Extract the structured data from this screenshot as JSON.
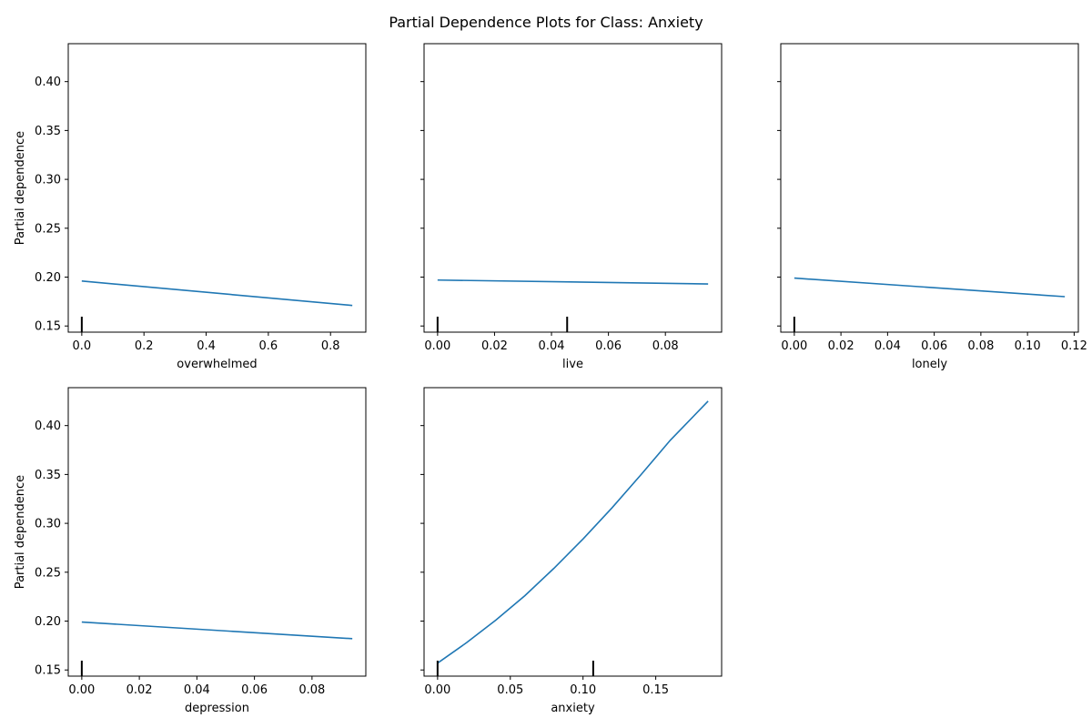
{
  "figure": {
    "title": "Partial Dependence Plots for Class: Anxiety",
    "line_color": "#1f77b4",
    "rug_color": "#000000"
  },
  "chart_data": [
    {
      "type": "line",
      "xlabel": "overwhelmed",
      "ylabel": "Partial dependence",
      "xlim": [
        -0.0435,
        0.9135
      ],
      "ylim": [
        0.1437,
        0.4388
      ],
      "xticks": [
        0.0,
        0.2,
        0.4,
        0.6,
        0.8
      ],
      "xtick_labels": [
        "0.0",
        "0.2",
        "0.4",
        "0.6",
        "0.8"
      ],
      "yticks": [
        0.15,
        0.2,
        0.25,
        0.3,
        0.35,
        0.4
      ],
      "ytick_labels": [
        "0.15",
        "0.20",
        "0.25",
        "0.30",
        "0.35",
        "0.40"
      ],
      "show_yticklabels": true,
      "series": [
        {
          "x": [
            0.0,
            0.87
          ],
          "y": [
            0.196,
            0.171
          ]
        }
      ],
      "deciles": [
        0.0
      ]
    },
    {
      "type": "line",
      "xlabel": "live",
      "ylabel": "",
      "xlim": [
        -0.00475,
        0.09975
      ],
      "ylim": [
        0.1437,
        0.4388
      ],
      "xticks": [
        0.0,
        0.02,
        0.04,
        0.06,
        0.08
      ],
      "xtick_labels": [
        "0.00",
        "0.02",
        "0.04",
        "0.06",
        "0.08"
      ],
      "yticks": [
        0.15,
        0.2,
        0.25,
        0.3,
        0.35,
        0.4
      ],
      "ytick_labels": [
        "",
        "",
        "",
        "",
        "",
        ""
      ],
      "show_yticklabels": false,
      "series": [
        {
          "x": [
            0.0,
            0.095
          ],
          "y": [
            0.197,
            0.193
          ]
        }
      ],
      "deciles": [
        0.0,
        0.0455
      ]
    },
    {
      "type": "line",
      "xlabel": "lonely",
      "ylabel": "",
      "xlim": [
        -0.0058,
        0.1218
      ],
      "ylim": [
        0.1437,
        0.4388
      ],
      "xticks": [
        0.0,
        0.02,
        0.04,
        0.06,
        0.08,
        0.1,
        0.12
      ],
      "xtick_labels": [
        "0.00",
        "0.02",
        "0.04",
        "0.06",
        "0.08",
        "0.10",
        "0.12"
      ],
      "yticks": [
        0.15,
        0.2,
        0.25,
        0.3,
        0.35,
        0.4
      ],
      "ytick_labels": [
        "",
        "",
        "",
        "",
        "",
        ""
      ],
      "show_yticklabels": false,
      "series": [
        {
          "x": [
            0.0,
            0.116
          ],
          "y": [
            0.199,
            0.18
          ]
        }
      ],
      "deciles": [
        0.0
      ]
    },
    {
      "type": "line",
      "xlabel": "depression",
      "ylabel": "Partial dependence",
      "xlim": [
        -0.0047,
        0.0987
      ],
      "ylim": [
        0.1437,
        0.4388
      ],
      "xticks": [
        0.0,
        0.02,
        0.04,
        0.06,
        0.08
      ],
      "xtick_labels": [
        "0.00",
        "0.02",
        "0.04",
        "0.06",
        "0.08"
      ],
      "yticks": [
        0.15,
        0.2,
        0.25,
        0.3,
        0.35,
        0.4
      ],
      "ytick_labels": [
        "0.15",
        "0.20",
        "0.25",
        "0.30",
        "0.35",
        "0.40"
      ],
      "show_yticklabels": true,
      "series": [
        {
          "x": [
            0.0,
            0.094
          ],
          "y": [
            0.199,
            0.182
          ]
        }
      ],
      "deciles": [
        0.0
      ]
    },
    {
      "type": "line",
      "xlabel": "anxiety",
      "ylabel": "",
      "xlim": [
        -0.0093,
        0.1953
      ],
      "ylim": [
        0.1437,
        0.4388
      ],
      "xticks": [
        0.0,
        0.05,
        0.1,
        0.15
      ],
      "xtick_labels": [
        "0.00",
        "0.05",
        "0.10",
        "0.15"
      ],
      "yticks": [
        0.15,
        0.2,
        0.25,
        0.3,
        0.35,
        0.4
      ],
      "ytick_labels": [
        "",
        "",
        "",
        "",
        "",
        ""
      ],
      "show_yticklabels": false,
      "series": [
        {
          "x": [
            0.0,
            0.02,
            0.04,
            0.06,
            0.08,
            0.1,
            0.12,
            0.14,
            0.16,
            0.186
          ],
          "y": [
            0.157,
            0.178,
            0.201,
            0.226,
            0.254,
            0.284,
            0.316,
            0.35,
            0.385,
            0.425
          ]
        }
      ],
      "deciles": [
        0.0,
        0.107
      ]
    }
  ]
}
